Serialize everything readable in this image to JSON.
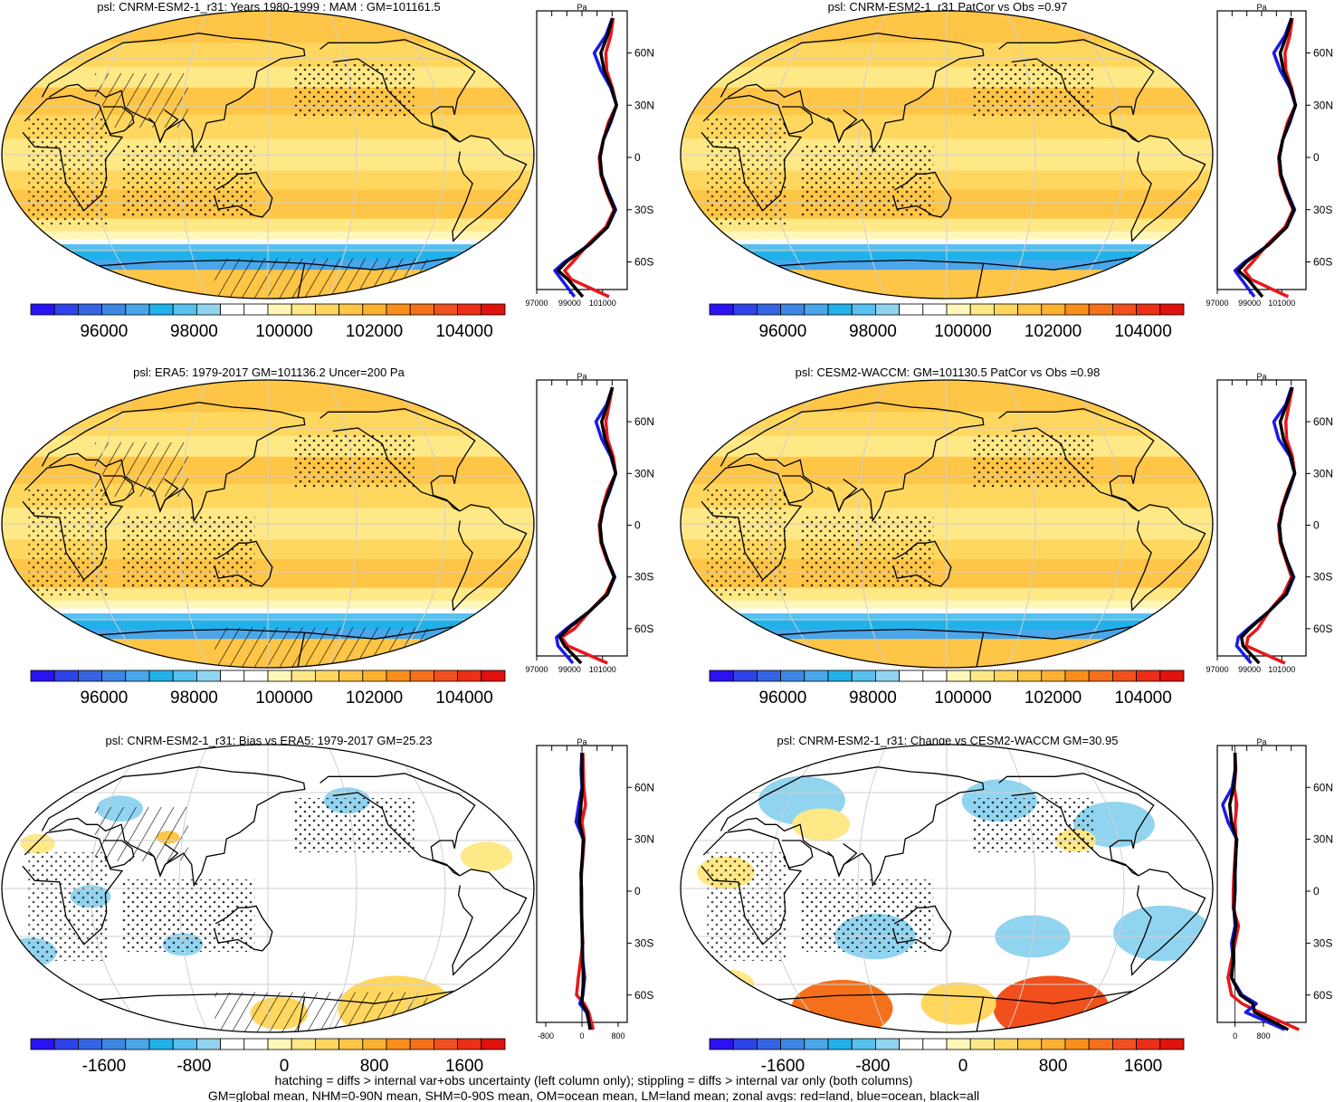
{
  "page": {
    "footer_line1": "hatching = diffs > internal var+obs uncertainty (left column only); stippling = diffs > internal var only (both columns)",
    "footer_line2": "GM=global mean, NHM=0-90N mean, SHM=0-90S mean, OM=ocean mean, LM=land mean; zonal avgs: red=land, blue=ocean, black=all"
  },
  "colors": {
    "land": "#e8161c",
    "ocean": "#1a1ae8",
    "all": "#000000",
    "palette": [
      "#2b12f2",
      "#2e43ea",
      "#3464e1",
      "#3e86e3",
      "#4aa6ea",
      "#21b1ea",
      "#57c0ee",
      "#91d4ef",
      "#ffffff",
      "#ffffff",
      "#fff7b9",
      "#ffe886",
      "#ffd75f",
      "#ffc546",
      "#fcb131",
      "#f98f1a",
      "#f5701a",
      "#f1501c",
      "#ec2f16",
      "#e0120e"
    ]
  },
  "chart_data": [
    {
      "id": "p1",
      "type": "heatmap",
      "title": "psl: CNRM-ESM2-1_r31: Years 1980-1999 : MAM : GM=101161.5",
      "variable": "psl",
      "units": "Pa",
      "colorbar_ticks": [
        "96000",
        "98000",
        "100000",
        "102000",
        "104000"
      ],
      "zonal_ylabels": [
        "60N",
        "30N",
        "0",
        "30S",
        "60S"
      ],
      "zonal_xlabels": [
        "97000",
        "99000",
        "101000"
      ],
      "zonal_xlim": [
        97000,
        102500
      ],
      "zonal_lat": [
        -80,
        -70,
        -65,
        -60,
        -50,
        -40,
        -30,
        -20,
        -10,
        0,
        10,
        20,
        30,
        40,
        50,
        60,
        70,
        80
      ],
      "series": [
        {
          "name": "land",
          "values": [
            101400,
            99100,
            98700,
            99200,
            100100,
            101200,
            101700,
            101250,
            100900,
            100800,
            101050,
            101350,
            101850,
            101600,
            101250,
            101200,
            101500,
            101650
          ]
        },
        {
          "name": "ocean",
          "values": [
            99300,
            98500,
            98100,
            98700,
            100200,
            101300,
            101800,
            101350,
            100950,
            100850,
            101050,
            101500,
            101850,
            101500,
            100900,
            100500,
            101200,
            101600
          ]
        },
        {
          "name": "all",
          "values": [
            99800,
            98900,
            98300,
            98800,
            100200,
            101300,
            101750,
            101300,
            100950,
            100850,
            101050,
            101450,
            101850,
            101550,
            101100,
            100900,
            101300,
            101600
          ]
        }
      ],
      "hatching": true,
      "stippling": true,
      "map_pattern": "climatology"
    },
    {
      "id": "p2",
      "type": "heatmap",
      "title": "psl: CNRM-ESM2-1_r31 PatCor vs Obs =0.97",
      "variable": "psl",
      "units": "Pa",
      "colorbar_ticks": [
        "96000",
        "98000",
        "100000",
        "102000",
        "104000"
      ],
      "zonal_ylabels": [
        "60N",
        "30N",
        "0",
        "30S",
        "60S"
      ],
      "zonal_xlabels": [
        "97000",
        "99000",
        "101000"
      ],
      "zonal_xlim": [
        97000,
        102500
      ],
      "zonal_lat": [
        -80,
        -70,
        -65,
        -60,
        -50,
        -40,
        -30,
        -20,
        -10,
        0,
        10,
        20,
        30,
        40,
        50,
        60,
        70,
        80
      ],
      "series": [
        {
          "name": "land",
          "values": [
            101400,
            99100,
            98700,
            99200,
            100100,
            101200,
            101700,
            101250,
            100900,
            100800,
            101050,
            101350,
            101850,
            101600,
            101250,
            101200,
            101500,
            101650
          ]
        },
        {
          "name": "ocean",
          "values": [
            99300,
            98500,
            98100,
            98700,
            100200,
            101300,
            101800,
            101350,
            100950,
            100850,
            101050,
            101500,
            101850,
            101500,
            100900,
            100500,
            101200,
            101600
          ]
        },
        {
          "name": "all",
          "values": [
            99800,
            98900,
            98300,
            98800,
            100200,
            101300,
            101750,
            101300,
            100950,
            100850,
            101050,
            101450,
            101850,
            101550,
            101100,
            100900,
            101300,
            101600
          ]
        }
      ],
      "hatching": false,
      "stippling": true,
      "map_pattern": "climatology"
    },
    {
      "id": "p3",
      "type": "heatmap",
      "title": "psl: ERA5: 1979-2017 GM=101136.2 Uncer=200 Pa",
      "variable": "psl",
      "units": "Pa",
      "colorbar_ticks": [
        "96000",
        "98000",
        "100000",
        "102000",
        "104000"
      ],
      "zonal_ylabels": [
        "60N",
        "30N",
        "0",
        "30S",
        "60S"
      ],
      "zonal_xlabels": [
        "97000",
        "99000",
        "101000"
      ],
      "zonal_xlim": [
        97000,
        102500
      ],
      "zonal_lat": [
        -80,
        -70,
        -65,
        -60,
        -50,
        -40,
        -30,
        -20,
        -10,
        0,
        10,
        20,
        30,
        40,
        50,
        60,
        70,
        80
      ],
      "series": [
        {
          "name": "land",
          "values": [
            101300,
            98900,
            98500,
            99300,
            100200,
            101200,
            101700,
            101250,
            100900,
            100800,
            101000,
            101300,
            101800,
            101650,
            101300,
            101200,
            101400,
            101600
          ]
        },
        {
          "name": "ocean",
          "values": [
            99200,
            98300,
            98200,
            98800,
            100200,
            101300,
            101750,
            101300,
            100950,
            100850,
            101050,
            101450,
            101800,
            101500,
            100950,
            100600,
            101250,
            101600
          ]
        },
        {
          "name": "all",
          "values": [
            99700,
            98700,
            98400,
            98900,
            100200,
            101300,
            101700,
            101300,
            100950,
            100850,
            101050,
            101400,
            101800,
            101550,
            101150,
            100950,
            101300,
            101600
          ]
        }
      ],
      "hatching": true,
      "stippling": true,
      "map_pattern": "climatology"
    },
    {
      "id": "p4",
      "type": "heatmap",
      "title": "psl: CESM2-WACCM: GM=101130.5 PatCor vs Obs =0.98",
      "variable": "psl",
      "units": "Pa",
      "colorbar_ticks": [
        "96000",
        "98000",
        "100000",
        "102000",
        "104000"
      ],
      "zonal_ylabels": [
        "60N",
        "30N",
        "0",
        "30S",
        "60S"
      ],
      "zonal_xlabels": [
        "97000",
        "99000",
        "101000"
      ],
      "zonal_xlim": [
        97000,
        102500
      ],
      "zonal_lat": [
        -80,
        -70,
        -65,
        -60,
        -50,
        -40,
        -30,
        -20,
        -10,
        0,
        10,
        20,
        30,
        40,
        50,
        60,
        70,
        80
      ],
      "series": [
        {
          "name": "land",
          "values": [
            101200,
            98800,
            98900,
            99500,
            100200,
            101100,
            101600,
            101250,
            100900,
            100800,
            101000,
            101350,
            101800,
            101650,
            101300,
            101250,
            101450,
            101650
          ]
        },
        {
          "name": "ocean",
          "values": [
            99100,
            98200,
            98300,
            98900,
            100200,
            101300,
            101750,
            101300,
            100950,
            100850,
            101050,
            101450,
            101800,
            101500,
            100800,
            100500,
            101250,
            101600
          ]
        },
        {
          "name": "all",
          "values": [
            99600,
            98600,
            98500,
            99000,
            100200,
            101250,
            101700,
            101300,
            100950,
            100850,
            101050,
            101400,
            101800,
            101550,
            101100,
            100900,
            101300,
            101650
          ]
        }
      ],
      "hatching": false,
      "stippling": true,
      "map_pattern": "climatology"
    },
    {
      "id": "p5",
      "type": "heatmap",
      "title": "psl: CNRM-ESM2-1_r31: Bias vs ERA5: 1979-2017 GM=25.23",
      "variable": "psl",
      "units": "Pa",
      "colorbar_ticks": [
        "-1600",
        "-800",
        "0",
        "800",
        "1600"
      ],
      "zonal_ylabels": [
        "60N",
        "30N",
        "0",
        "30S",
        "60S"
      ],
      "zonal_xlabels": [
        "-800",
        "0",
        "800"
      ],
      "zonal_xlim": [
        -1000,
        1000
      ],
      "zonal_lat": [
        -80,
        -70,
        -65,
        -60,
        -50,
        -40,
        -30,
        -20,
        -10,
        0,
        10,
        20,
        30,
        40,
        50,
        60,
        70,
        80
      ],
      "series": [
        {
          "name": "land",
          "values": [
            250,
            150,
            50,
            -120,
            -80,
            -30,
            20,
            0,
            -10,
            -20,
            -10,
            20,
            50,
            0,
            80,
            40,
            30,
            20
          ]
        },
        {
          "name": "ocean",
          "values": [
            200,
            100,
            -50,
            20,
            60,
            20,
            10,
            0,
            -10,
            -10,
            -20,
            10,
            30,
            -130,
            -70,
            0,
            -20,
            0
          ]
        },
        {
          "name": "all",
          "values": [
            180,
            120,
            0,
            10,
            40,
            10,
            10,
            0,
            -10,
            -10,
            -20,
            10,
            30,
            -60,
            -20,
            10,
            0,
            0
          ]
        }
      ],
      "hatching": true,
      "stippling": true,
      "map_pattern": "bias"
    },
    {
      "id": "p6",
      "type": "heatmap",
      "title": "psl: CNRM-ESM2-1_r31: Change vs CESM2-WACCM GM=30.95",
      "variable": "psl",
      "units": "Pa",
      "colorbar_ticks": [
        "-1600",
        "-800",
        "0",
        "800",
        "1600"
      ],
      "zonal_ylabels": [
        "60N",
        "30N",
        "0",
        "30S",
        "60S"
      ],
      "zonal_xlabels": [
        "0",
        "800"
      ],
      "zonal_xlim": [
        -500,
        2000
      ],
      "zonal_lat": [
        -80,
        -70,
        -65,
        -60,
        -50,
        -40,
        -30,
        -20,
        -10,
        0,
        10,
        20,
        30,
        40,
        50,
        60,
        70,
        80
      ],
      "series": [
        {
          "name": "land",
          "values": [
            1800,
            700,
            200,
            -100,
            -200,
            -100,
            0,
            100,
            -50,
            -50,
            -30,
            0,
            30,
            0,
            50,
            -20,
            20,
            0
          ]
        },
        {
          "name": "ocean",
          "values": [
            1400,
            300,
            600,
            200,
            -100,
            -50,
            -100,
            0,
            -30,
            0,
            0,
            20,
            50,
            -200,
            -350,
            -80,
            0,
            0
          ]
        },
        {
          "name": "all",
          "values": [
            1500,
            550,
            500,
            150,
            -100,
            -50,
            -50,
            30,
            -30,
            0,
            0,
            20,
            40,
            -100,
            -150,
            -40,
            10,
            0
          ]
        }
      ],
      "hatching": false,
      "stippling": true,
      "map_pattern": "change"
    }
  ]
}
